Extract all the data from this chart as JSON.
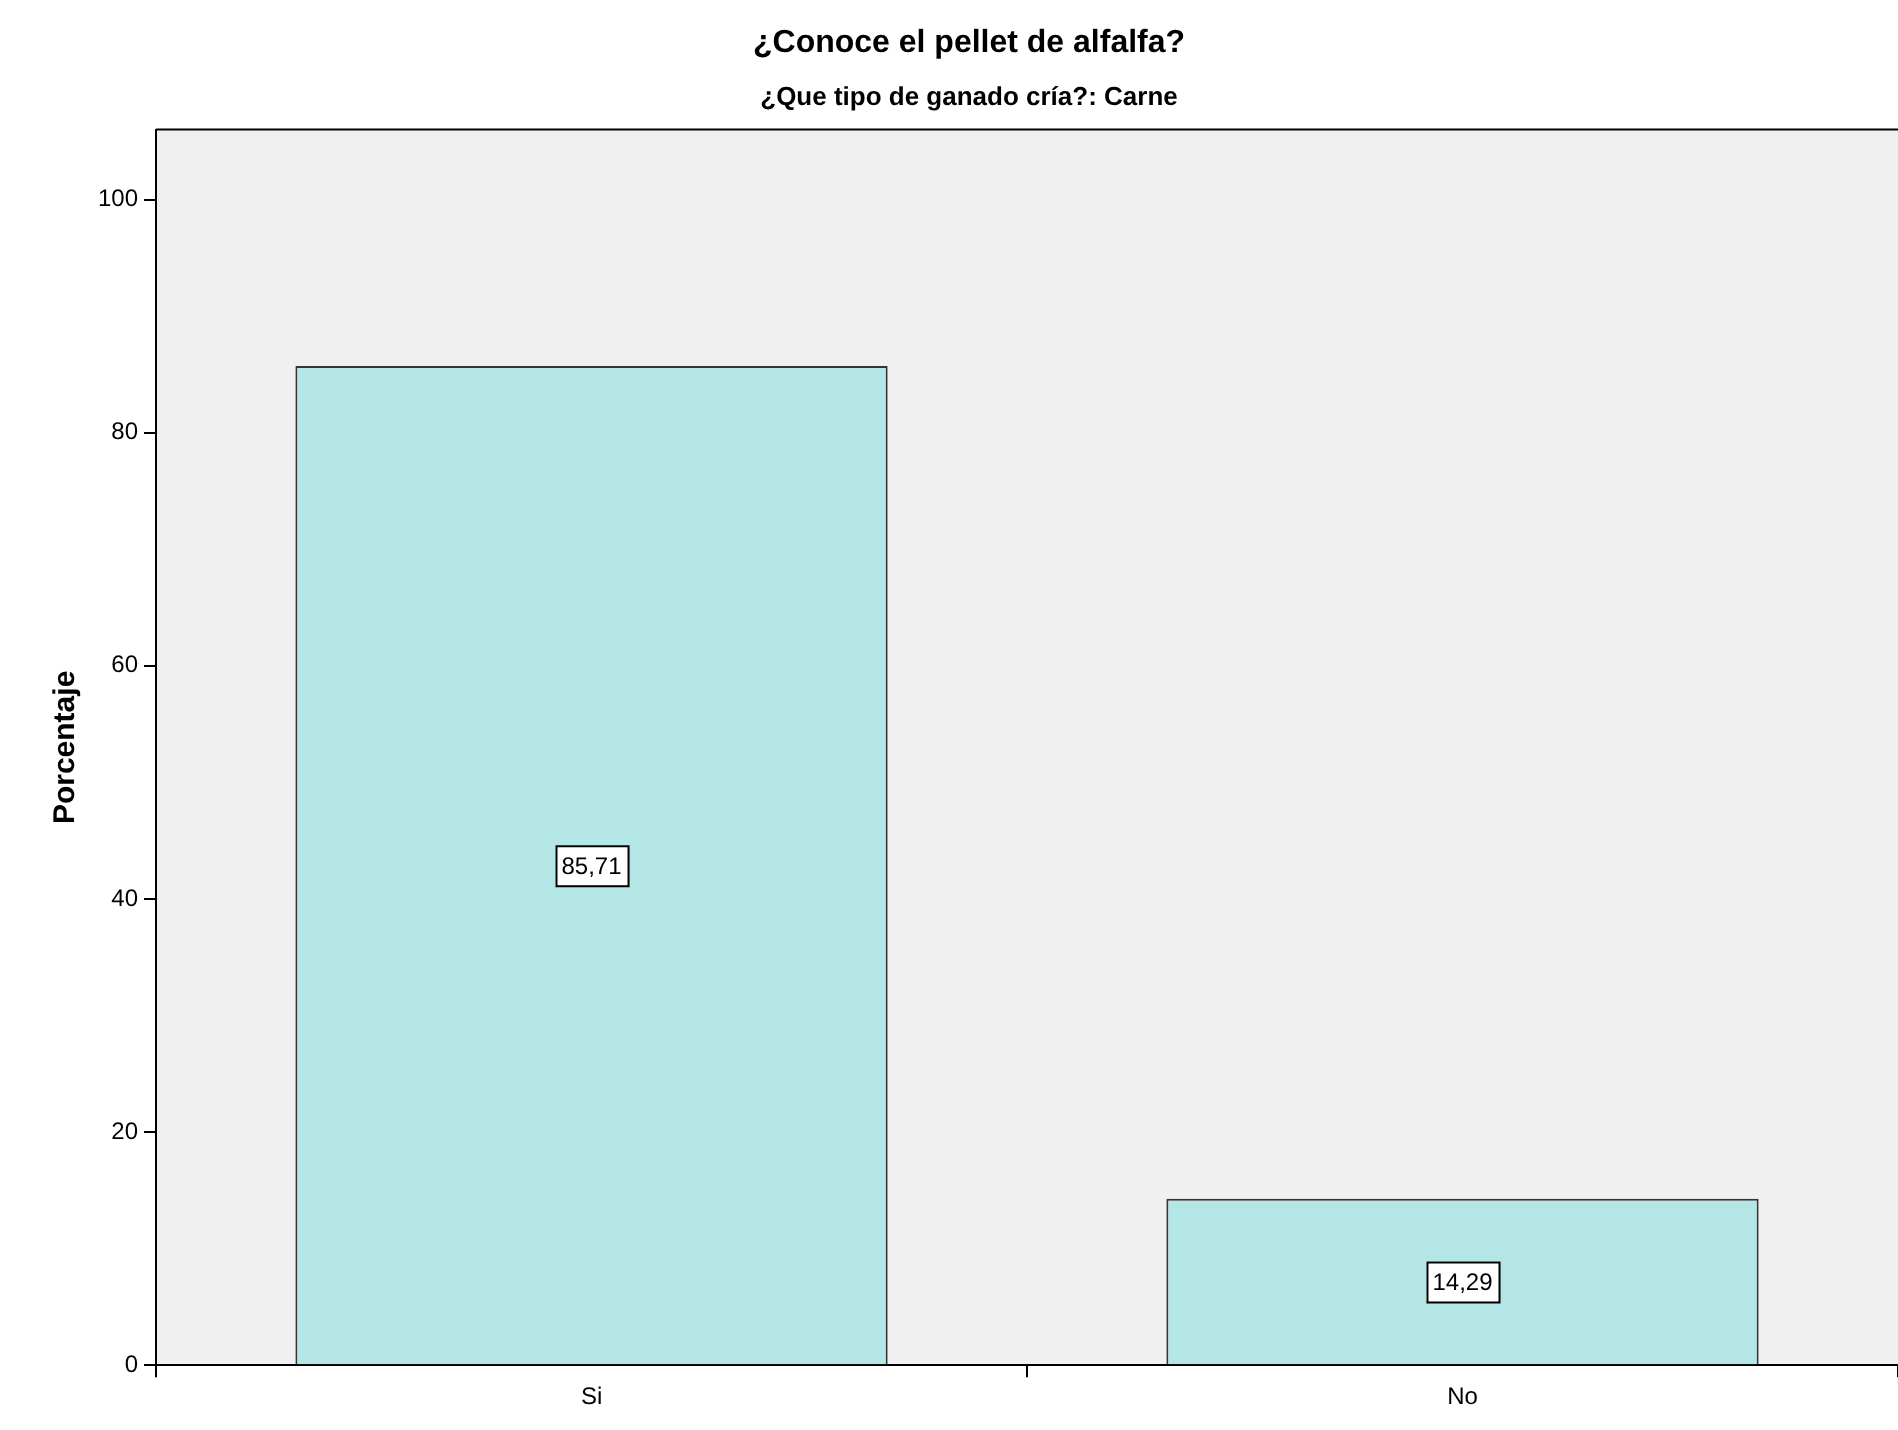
{
  "chart_data": {
    "type": "bar",
    "title": "¿Conoce el pellet de alfalfa?",
    "subtitle": "¿Que tipo de ganado cría?: Carne",
    "ylabel": "Porcentaje",
    "categories": [
      "Si",
      "No"
    ],
    "values": [
      85.71,
      14.29
    ],
    "value_labels": [
      "85,71",
      "14,29"
    ],
    "color": "#b4e6e6",
    "ylim": [
      0,
      106
    ],
    "yticks": [
      0,
      20,
      40,
      60,
      80,
      100
    ],
    "grid": false,
    "legend": false
  }
}
